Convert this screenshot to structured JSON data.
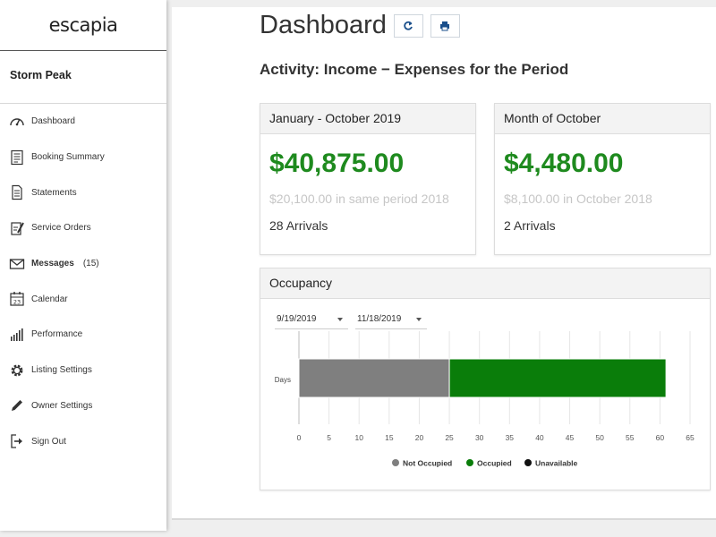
{
  "brand": {
    "logo_text": "escapia"
  },
  "owner": {
    "name": "Storm Peak"
  },
  "nav": [
    {
      "id": "dashboard",
      "icon": "speedometer-icon",
      "label": "Dashboard"
    },
    {
      "id": "booking-summary",
      "icon": "document-list-icon",
      "label": "Booking Summary"
    },
    {
      "id": "statements",
      "icon": "statement-icon",
      "label": "Statements"
    },
    {
      "id": "service-orders",
      "icon": "clipboard-pen-icon",
      "label": "Service Orders"
    },
    {
      "id": "messages",
      "icon": "envelope-icon",
      "label": "Messages",
      "count": "(15)",
      "bold": true
    },
    {
      "id": "calendar",
      "icon": "calendar-icon",
      "label": "Calendar"
    },
    {
      "id": "performance",
      "icon": "bar-chart-icon",
      "label": "Performance"
    },
    {
      "id": "listing-settings",
      "icon": "gear-icon",
      "label": "Listing Settings"
    },
    {
      "id": "owner-settings",
      "icon": "pencil-icon",
      "label": "Owner Settings"
    },
    {
      "id": "sign-out",
      "icon": "sign-out-icon",
      "label": "Sign Out"
    }
  ],
  "header": {
    "title": "Dashboard",
    "refresh_icon": "refresh-icon",
    "print_icon": "print-icon"
  },
  "subtitle": "Activity: Income − Expenses for the Period",
  "cards": {
    "period": {
      "heading": "January - October 2019",
      "amount": "$40,875.00",
      "previous": "$20,100.00 in same period 2018",
      "arrivals": "28 Arrivals"
    },
    "month": {
      "heading": "Month of October",
      "amount": "$4,480.00",
      "previous": "$8,100.00 in October 2018",
      "arrivals": "2 Arrivals"
    }
  },
  "occupancy": {
    "heading": "Occupancy",
    "start_date": "9/19/2019",
    "end_date": "11/18/2019"
  },
  "colors": {
    "accent_green": "#1e8a1e",
    "occupied": "#0a7d0a",
    "not_occupied": "#7f7f7f",
    "unavailable": "#111111"
  },
  "chart_data": {
    "type": "bar",
    "orientation": "horizontal",
    "stacked": true,
    "categories": [
      "Days"
    ],
    "series": [
      {
        "name": "Not Occupied",
        "values": [
          25
        ]
      },
      {
        "name": "Occupied",
        "values": [
          36
        ]
      },
      {
        "name": "Unavailable",
        "values": [
          0
        ]
      }
    ],
    "xlim": [
      0,
      65
    ],
    "xticks": [
      0,
      5,
      10,
      15,
      20,
      25,
      30,
      35,
      40,
      45,
      50,
      55,
      60,
      65
    ],
    "grid": true,
    "legend": "bottom"
  }
}
